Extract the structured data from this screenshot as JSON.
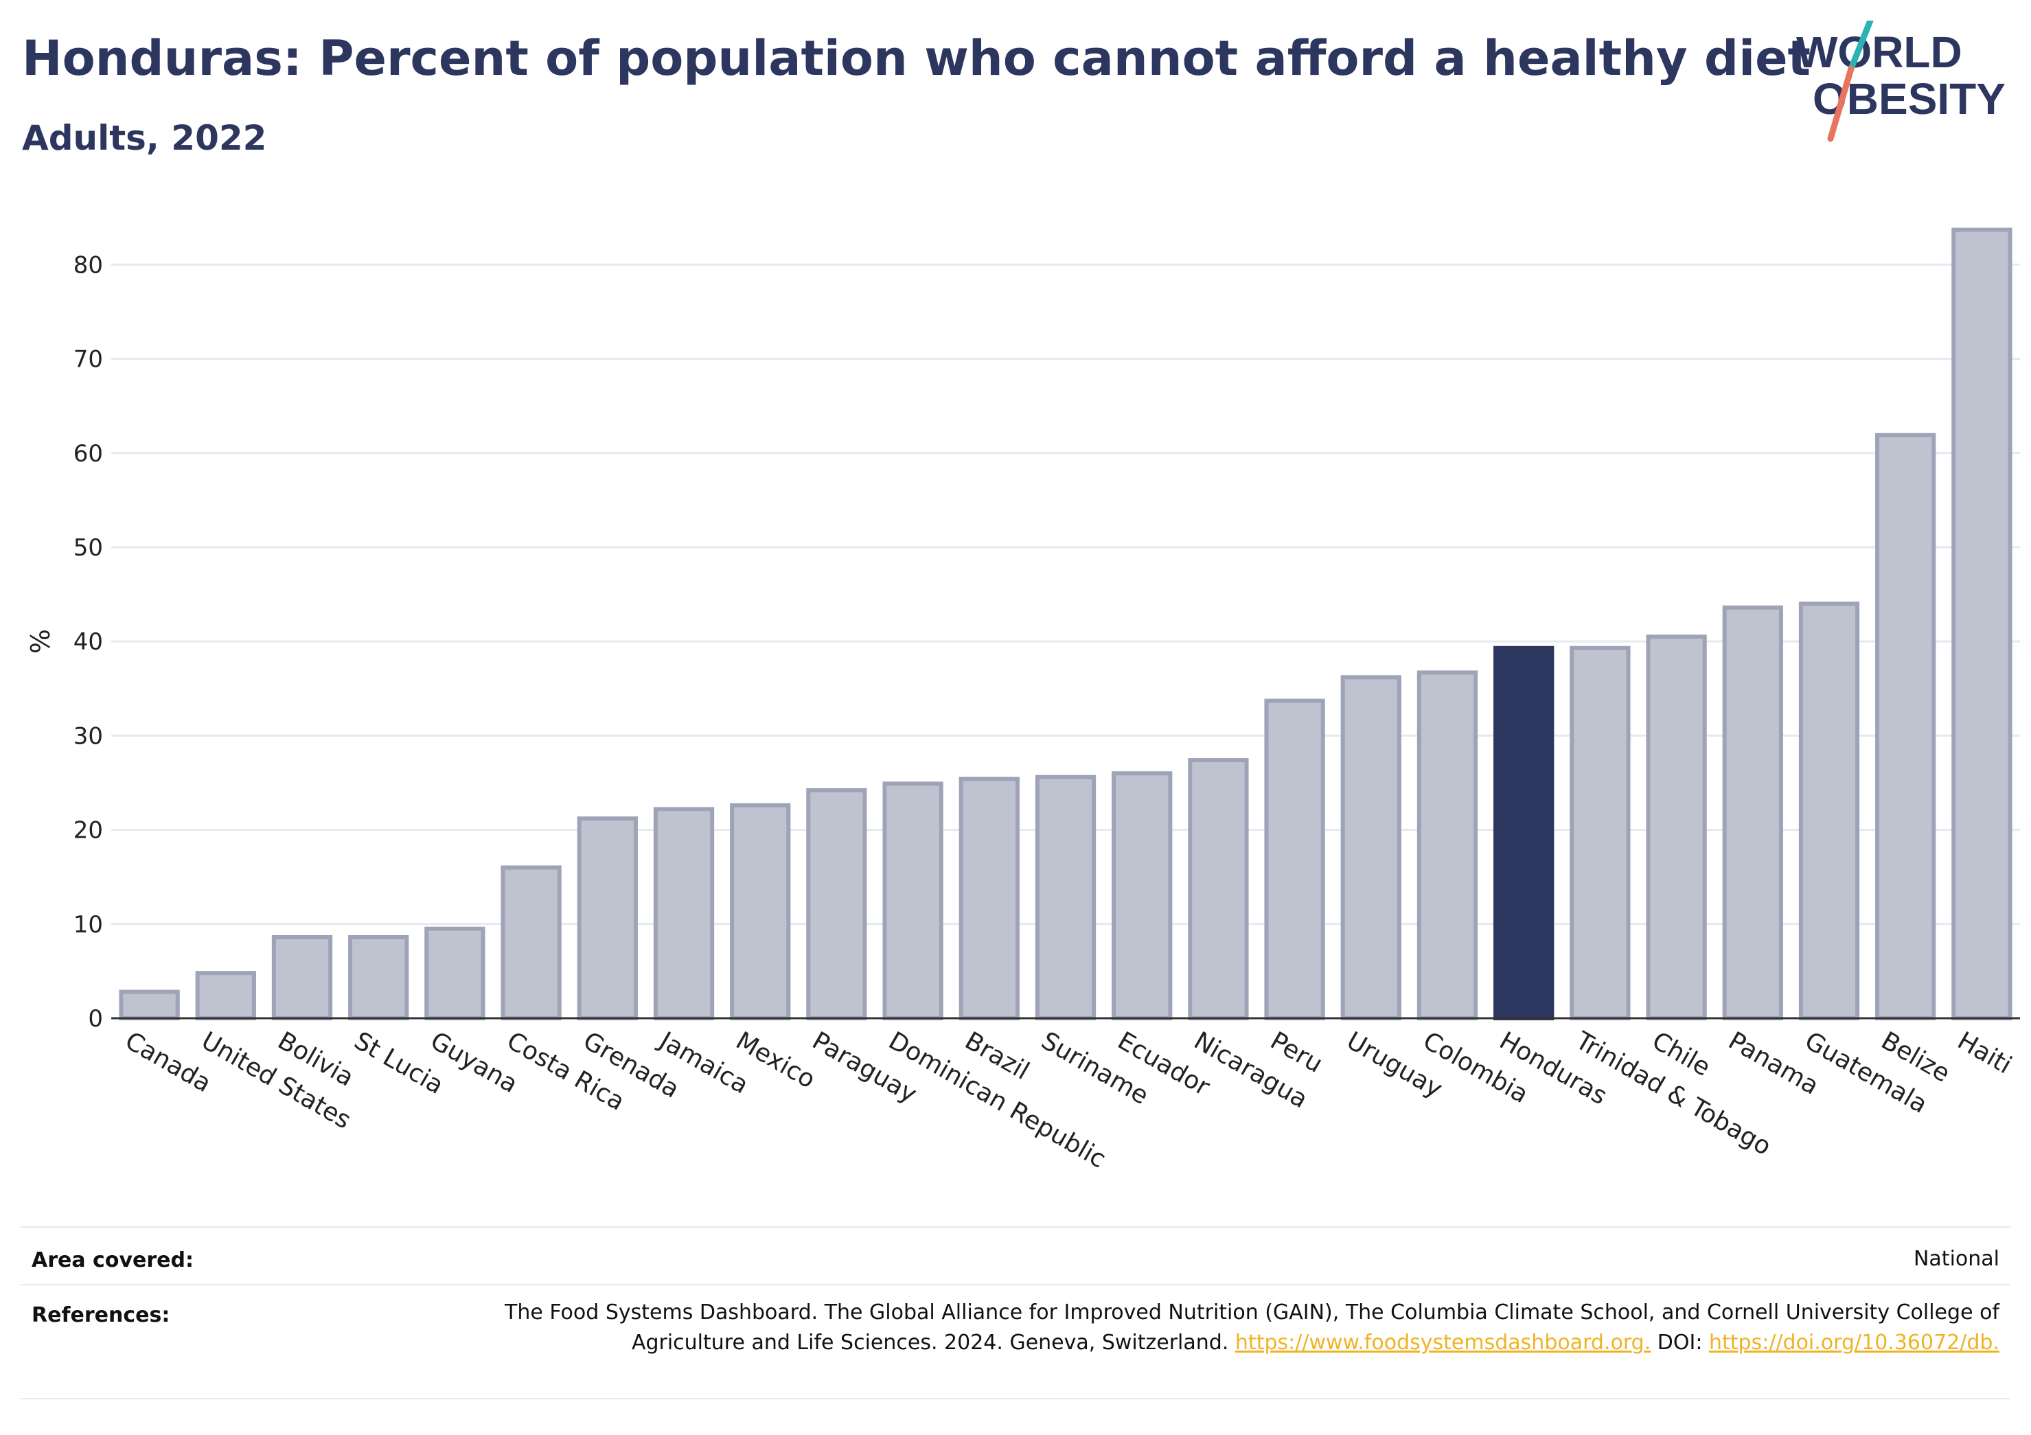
{
  "title": "Honduras: Percent of population who cannot afford a healthy diet",
  "subtitle": "Adults, 2022",
  "logo": {
    "line1": "WORLD",
    "line2": "OBESITY",
    "accent_teal": "#2ab3b1",
    "accent_coral": "#e8735f"
  },
  "colors": {
    "bar": "#bfc3d0",
    "bar_edge": "#9ea3b8",
    "highlight": "#2c365e",
    "grid": "#e6e8f2",
    "axis": "#333333",
    "link": "#f0b323"
  },
  "chart_data": {
    "type": "bar",
    "categories": [
      "Canada",
      "United States",
      "Bolivia",
      "St Lucia",
      "Guyana",
      "Costa Rica",
      "Grenada",
      "Jamaica",
      "Mexico",
      "Paraguay",
      "Dominican Republic",
      "Brazil",
      "Suriname",
      "Ecuador",
      "Nicaragua",
      "Peru",
      "Uruguay",
      "Colombia",
      "Honduras",
      "Trinidad & Tobago",
      "Chile",
      "Panama",
      "Guatemala",
      "Belize",
      "Haiti"
    ],
    "values": [
      2.8,
      4.8,
      8.6,
      8.6,
      9.5,
      16.0,
      21.2,
      22.2,
      22.6,
      24.2,
      24.9,
      25.4,
      25.6,
      26.0,
      27.4,
      33.7,
      36.2,
      36.7,
      39.3,
      39.3,
      40.5,
      43.6,
      44.0,
      61.9,
      83.7
    ],
    "highlight": "Honduras",
    "ylabel": "%",
    "xlabel": "",
    "ylim": [
      0,
      88
    ],
    "yticks": [
      0,
      10,
      20,
      30,
      40,
      50,
      60,
      70,
      80
    ],
    "grid": true
  },
  "footer": {
    "area_label": "Area covered:",
    "area_value": "National",
    "ref_label": "References:",
    "ref_text": "The Food Systems Dashboard. The Global Alliance for Improved Nutrition (GAIN), The Columbia Climate School, and Cornell University College of Agriculture and Life Sciences. 2024. Geneva, Switzerland.",
    "ref_link1": "https://www.foodsystemsdashboard.org.",
    "ref_doi_label": "DOI:",
    "ref_link2": "https://doi.org/10.36072/db."
  }
}
